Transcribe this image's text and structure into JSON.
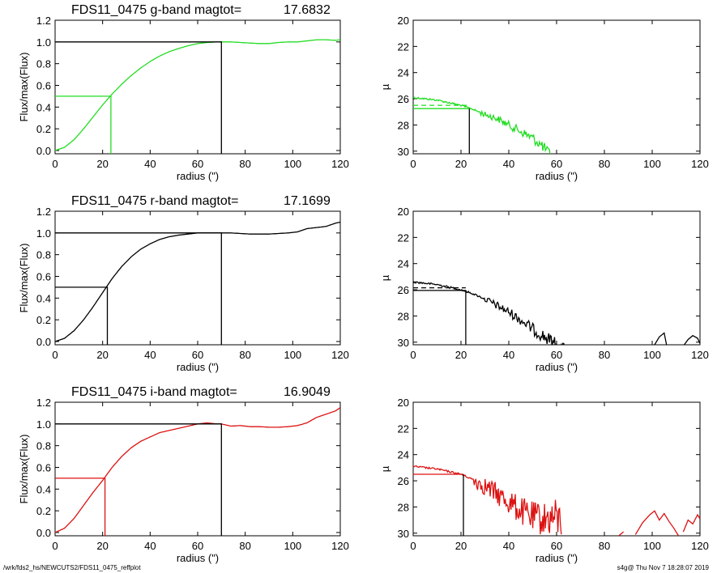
{
  "footer": {
    "path": "/wrk/fds2_hs/NEWCUTS2/FDS11_0475_reffplot",
    "stamp": "s4g@  Thu Nov  7 18:28:07 2019"
  },
  "chart_data": [
    {
      "type": "line",
      "panel": "g-band growth curve",
      "title_prefix": "FDS11_0475 g-band  magtot=",
      "title_value": "17.6832",
      "xlabel": "radius (\")",
      "ylabel": "Flux/max(Flux)",
      "xlim": [
        0,
        120
      ],
      "ylim": [
        -0.03,
        1.2
      ],
      "xticks": [
        0,
        20,
        40,
        60,
        80,
        100,
        120
      ],
      "yticks": [
        0.0,
        0.2,
        0.4,
        0.6,
        0.8,
        1.0,
        1.2
      ],
      "color": "#22dd22",
      "series": [
        {
          "x": [
            0,
            4,
            8,
            12,
            16,
            20,
            24,
            28,
            32,
            36,
            40,
            44,
            48,
            52,
            56,
            60,
            64,
            68,
            70,
            74,
            78,
            82,
            86,
            90,
            94,
            98,
            102,
            106,
            110,
            114,
            118,
            120
          ],
          "values": [
            0.0,
            0.03,
            0.1,
            0.2,
            0.31,
            0.42,
            0.52,
            0.61,
            0.69,
            0.76,
            0.82,
            0.87,
            0.91,
            0.94,
            0.965,
            0.985,
            0.995,
            1.0,
            1.0,
            1.0,
            0.995,
            0.99,
            0.985,
            0.985,
            0.995,
            1.0,
            1.0,
            1.01,
            1.02,
            1.02,
            1.015,
            1.02
          ]
        }
      ],
      "half_light": {
        "x": 23.5,
        "y": 0.5,
        "color": "#22dd22"
      },
      "total": {
        "x": 70,
        "y": 1.0,
        "color": "#000000"
      }
    },
    {
      "type": "line",
      "panel": "g-band surface brightness profile",
      "xlabel": "radius (\")",
      "ylabel": "µ",
      "xlim": [
        0,
        120
      ],
      "ylim": [
        30.2,
        20
      ],
      "xticks": [
        0,
        20,
        40,
        60,
        80,
        100,
        120
      ],
      "yticks": [
        20,
        22,
        24,
        26,
        28,
        30
      ],
      "color": "#22dd22",
      "profile": {
        "x": [
          0,
          5,
          10,
          15,
          20,
          25,
          30,
          35,
          40,
          45,
          50,
          54,
          57,
          60
        ],
        "values": [
          25.9,
          26.0,
          26.1,
          26.3,
          26.5,
          26.8,
          27.2,
          27.5,
          28.0,
          28.5,
          29.0,
          29.6,
          30.2,
          31.0
        ],
        "noise_start": 28,
        "noise_amp": 0.2
      },
      "mean_mu": 26.5,
      "reff_mu": 26.75,
      "reff_x": 23.5,
      "reff_color": "#22dd22"
    },
    {
      "type": "line",
      "panel": "r-band growth curve",
      "title_prefix": "FDS11_0475 r-band  magtot=",
      "title_value": "17.1699",
      "xlabel": "radius (\")",
      "ylabel": "Flux/max(Flux)",
      "xlim": [
        0,
        120
      ],
      "ylim": [
        -0.03,
        1.2
      ],
      "xticks": [
        0,
        20,
        40,
        60,
        80,
        100,
        120
      ],
      "yticks": [
        0.0,
        0.2,
        0.4,
        0.6,
        0.8,
        1.0,
        1.2
      ],
      "color": "#000000",
      "series": [
        {
          "x": [
            0,
            4,
            8,
            12,
            16,
            20,
            24,
            28,
            32,
            36,
            40,
            44,
            48,
            52,
            56,
            60,
            64,
            68,
            70,
            74,
            78,
            82,
            86,
            90,
            94,
            98,
            102,
            106,
            110,
            114,
            118,
            120
          ],
          "values": [
            0.0,
            0.03,
            0.1,
            0.2,
            0.32,
            0.45,
            0.58,
            0.69,
            0.78,
            0.85,
            0.9,
            0.94,
            0.965,
            0.98,
            0.99,
            1.0,
            1.0,
            1.0,
            1.0,
            1.0,
            0.995,
            0.99,
            0.99,
            0.99,
            0.995,
            1.0,
            1.01,
            1.04,
            1.05,
            1.06,
            1.09,
            1.1
          ]
        }
      ],
      "half_light": {
        "x": 22,
        "y": 0.5,
        "color": "#000000"
      },
      "total": {
        "x": 70,
        "y": 1.0,
        "color": "#000000"
      }
    },
    {
      "type": "line",
      "panel": "r-band surface brightness profile",
      "xlabel": "radius (\")",
      "ylabel": "µ",
      "xlim": [
        0,
        120
      ],
      "ylim": [
        30.2,
        20
      ],
      "xticks": [
        0,
        20,
        40,
        60,
        80,
        100,
        120
      ],
      "yticks": [
        20,
        22,
        24,
        26,
        28,
        30
      ],
      "color": "#000000",
      "profile": {
        "x": [
          0,
          5,
          10,
          15,
          20,
          25,
          30,
          35,
          40,
          45,
          50,
          55,
          60,
          64
        ],
        "values": [
          25.4,
          25.5,
          25.6,
          25.8,
          26.0,
          26.3,
          26.7,
          27.2,
          27.7,
          28.3,
          29.0,
          29.6,
          30.2,
          30.8
        ],
        "noise_start": 30,
        "noise_amp": 0.25
      },
      "outer": [
        {
          "x": [
            100,
            103,
            105,
            106,
            108
          ],
          "values": [
            30.5,
            29.6,
            29.3,
            30.2,
            30.6
          ]
        },
        {
          "x": [
            113,
            115,
            117,
            119,
            120
          ],
          "values": [
            30.3,
            29.8,
            29.5,
            29.7,
            30.1
          ]
        }
      ],
      "mean_mu": 25.85,
      "reff_mu": 26.05,
      "reff_x": 22,
      "reff_color": "#000000"
    },
    {
      "type": "line",
      "panel": "i-band growth curve",
      "title_prefix": "FDS11_0475 i-band  magtot=",
      "title_value": "16.9049",
      "xlabel": "radius (\")",
      "ylabel": "Flux/max(Flux)",
      "xlim": [
        0,
        120
      ],
      "ylim": [
        -0.03,
        1.2
      ],
      "xticks": [
        0,
        20,
        40,
        60,
        80,
        100,
        120
      ],
      "yticks": [
        0.0,
        0.2,
        0.4,
        0.6,
        0.8,
        1.0,
        1.2
      ],
      "color": "#dd1111",
      "series": [
        {
          "x": [
            0,
            4,
            8,
            12,
            16,
            20,
            24,
            28,
            32,
            36,
            40,
            44,
            48,
            52,
            56,
            60,
            64,
            68,
            70,
            74,
            78,
            82,
            86,
            90,
            94,
            98,
            102,
            106,
            110,
            114,
            118,
            120
          ],
          "values": [
            0.0,
            0.04,
            0.13,
            0.25,
            0.37,
            0.48,
            0.6,
            0.7,
            0.78,
            0.84,
            0.88,
            0.92,
            0.94,
            0.96,
            0.98,
            1.0,
            1.01,
            1.0,
            1.0,
            0.98,
            0.985,
            0.975,
            0.975,
            0.97,
            0.97,
            0.975,
            0.985,
            1.01,
            1.06,
            1.09,
            1.12,
            1.15
          ]
        }
      ],
      "half_light": {
        "x": 21,
        "y": 0.5,
        "color": "#dd1111"
      },
      "total": {
        "x": 70,
        "y": 1.0,
        "color": "#000000"
      }
    },
    {
      "type": "line",
      "panel": "i-band surface brightness profile",
      "xlabel": "radius (\")",
      "ylabel": "µ",
      "xlim": [
        0,
        120
      ],
      "ylim": [
        30.2,
        20
      ],
      "xticks": [
        0,
        20,
        40,
        60,
        80,
        100,
        120
      ],
      "yticks": [
        20,
        22,
        24,
        26,
        28,
        30
      ],
      "color": "#dd1111",
      "profile": {
        "x": [
          0,
          5,
          10,
          15,
          20,
          25,
          30,
          35,
          40,
          45,
          50,
          55,
          60,
          62
        ],
        "values": [
          24.9,
          25.0,
          25.1,
          25.3,
          25.5,
          25.9,
          26.4,
          27.0,
          27.6,
          28.3,
          28.8,
          28.9,
          28.8,
          29.2
        ],
        "noise_start": 25,
        "noise_amp": 0.6
      },
      "outer": [
        {
          "x": [
            86,
            88
          ],
          "values": [
            30.2,
            29.9
          ]
        },
        {
          "x": [
            93,
            96,
            99,
            101,
            103,
            105,
            107,
            109,
            111
          ],
          "values": [
            30.1,
            29.2,
            28.6,
            28.3,
            29.0,
            28.5,
            29.1,
            29.6,
            30.2
          ]
        },
        {
          "x": [
            113,
            115,
            117,
            119,
            120
          ],
          "values": [
            29.9,
            29.0,
            29.3,
            28.6,
            28.9
          ]
        }
      ],
      "reff_mu": 25.5,
      "reff_x": 21,
      "reff_color": "#dd1111"
    }
  ]
}
